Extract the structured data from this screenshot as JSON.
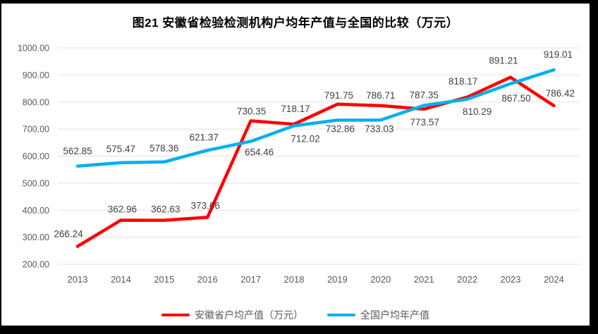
{
  "title": "图21 安徽省检验检测机构户均年产值与全国的比较（万元）",
  "colors": {
    "frame_border": "#000000",
    "background": "#ffffff",
    "grid_line": "#e2e2e2",
    "axis_text": "#595959",
    "data_label_text": "#404040",
    "anhui_line": "#fe0000",
    "national_line": "#00b0f0"
  },
  "chart_data": {
    "type": "line",
    "title": "图21 安徽省检验检测机构户均年产值与全国的比较（万元）",
    "x": [
      "2013",
      "2014",
      "2015",
      "2016",
      "2017",
      "2018",
      "2019",
      "2020",
      "2021",
      "2022",
      "2023",
      "2024"
    ],
    "series": [
      {
        "name": "安徽省户均产值（万元）",
        "color": "#fe0000",
        "values": [
          266.24,
          362.96,
          362.63,
          373.66,
          730.35,
          718.17,
          791.75,
          786.71,
          773.57,
          818.17,
          891.21,
          786.42
        ],
        "labels": [
          "266.24",
          "362.96",
          "362.63",
          "373.66",
          "730.35",
          "718.17",
          "791.75",
          "786.71",
          "773.57",
          "818.17",
          "891.21",
          "786.42"
        ],
        "label_offsets": [
          [
            -13,
            -13
          ],
          [
            2,
            -11
          ],
          [
            2,
            -11
          ],
          [
            -3,
            -12
          ],
          [
            1,
            -9
          ],
          [
            2,
            -17
          ],
          [
            2,
            -8
          ],
          [
            0,
            -10
          ],
          [
            1,
            23
          ],
          [
            -6,
            -18
          ],
          [
            -10,
            -19
          ],
          [
            9,
            -13
          ]
        ]
      },
      {
        "name": "全国户均年产值",
        "color": "#00b0f0",
        "values": [
          562.85,
          575.47,
          578.36,
          621.37,
          654.46,
          712.02,
          732.86,
          733.03,
          787.35,
          810.29,
          867.5,
          919.01
        ],
        "labels": [
          "562.85",
          "575.47",
          "578.36",
          "621.37",
          "654.46",
          "712.02",
          "732.86",
          "733.03",
          "787.35",
          "810.29",
          "867.50",
          "919.01"
        ],
        "label_offsets": [
          [
            0,
            -17
          ],
          [
            0,
            -15
          ],
          [
            0,
            -15
          ],
          [
            -5,
            -14
          ],
          [
            12,
            20
          ],
          [
            16,
            23
          ],
          [
            4,
            17
          ],
          [
            -2,
            17
          ],
          [
            0,
            -10
          ],
          [
            14,
            22
          ],
          [
            8,
            25
          ],
          [
            6,
            -17
          ]
        ]
      }
    ],
    "ylim": [
      200,
      1000
    ],
    "yticks": [
      "1000.00",
      "900.00",
      "800.00",
      "700.00",
      "600.00",
      "500.00",
      "400.00",
      "300.00",
      "200.00"
    ],
    "xlabel": "",
    "ylabel": "",
    "grid": "horizontal",
    "legend_position": "bottom",
    "line_width": 4.5
  }
}
